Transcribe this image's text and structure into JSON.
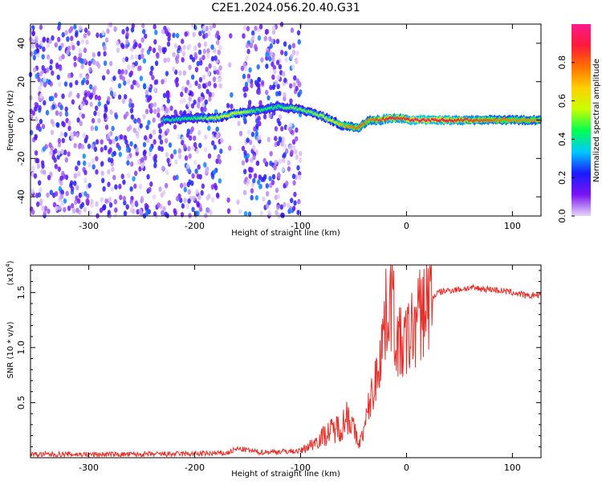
{
  "title": "C2E1.2024.056.20.40.G31",
  "colors": {
    "axis": "#000000",
    "snr_line": "#e8302a",
    "background": "#ffffff"
  },
  "chart_data": [
    {
      "type": "heatmap",
      "xlabel": "Height of straight line (km)",
      "ylabel": "Frequency (Hz)",
      "xlim": [
        -355,
        127
      ],
      "ylim": [
        -50,
        50
      ],
      "xticks": [
        -300,
        -200,
        -100,
        0,
        100
      ],
      "yticks": [
        -40,
        -20,
        0,
        20,
        40
      ],
      "grid": false,
      "colorbar": {
        "label": "Normalized spectral amplitude",
        "range": [
          0,
          1
        ],
        "ticks": [
          "0.0",
          "0.2",
          "0.4",
          "0.6",
          "0.8"
        ],
        "colormap": [
          "#e6d8f7",
          "#7a14f2",
          "#1a1aff",
          "#00c8ff",
          "#00ff50",
          "#c8ff00",
          "#ffd000",
          "#ff7000",
          "#ff1a3a",
          "#ff1a8c"
        ]
      },
      "ridge": {
        "x": [
          -230,
          -200,
          -180,
          -165,
          -155,
          -140,
          -120,
          -105,
          -90,
          -75,
          -60,
          -45,
          -35,
          -25,
          -15,
          -5,
          5,
          20,
          40,
          60,
          80,
          100,
          120
        ],
        "y": [
          0,
          1,
          1,
          3,
          4,
          5,
          7,
          6,
          4,
          1,
          -3,
          -4,
          0,
          0,
          1,
          1,
          0,
          0,
          0,
          0,
          0,
          0,
          0
        ],
        "amplitude": [
          0.4,
          0.45,
          0.55,
          0.6,
          0.55,
          0.45,
          0.45,
          0.5,
          0.5,
          0.55,
          0.7,
          0.8,
          0.75,
          0.85,
          0.9,
          0.85,
          0.95,
          0.95,
          0.9,
          0.85,
          0.8,
          0.75,
          0.75
        ]
      },
      "noise_band": {
        "x_start": -355,
        "x_end": -100,
        "gap": [
          -175,
          -155
        ]
      }
    },
    {
      "type": "line",
      "xlabel": "Height of straight line (km)",
      "ylabel": "SNR (10 * v/v)",
      "y_multiplier": "(x10",
      "y_multiplier_exp": "4",
      "xlim": [
        -355,
        127
      ],
      "ylim": [
        0,
        17500
      ],
      "xticks": [
        -300,
        -200,
        -100,
        0,
        100
      ],
      "yticks": [
        "0.5",
        "1.0",
        "1.5"
      ],
      "ytick_values": [
        5000,
        10000,
        15000
      ],
      "grid": false,
      "series": [
        {
          "x": [
            -355,
            -300,
            -250,
            -200,
            -170,
            -160,
            -150,
            -140,
            -100,
            -90,
            -75,
            -60,
            -55,
            -50,
            -45,
            -40,
            -35,
            -30,
            -25,
            -20,
            -15,
            -12,
            -10,
            -5,
            0,
            5,
            10,
            20,
            30,
            40,
            60,
            80,
            100,
            110,
            115,
            120,
            127
          ],
          "y": [
            300,
            300,
            300,
            350,
            400,
            800,
            700,
            500,
            600,
            1200,
            2200,
            3000,
            4200,
            2500,
            1200,
            2500,
            5000,
            6500,
            9500,
            12500,
            15000,
            13000,
            11000,
            10000,
            10500,
            11500,
            12500,
            14200,
            15000,
            15200,
            15400,
            15300,
            15000,
            14800,
            14600,
            14800,
            14700
          ]
        }
      ]
    }
  ]
}
